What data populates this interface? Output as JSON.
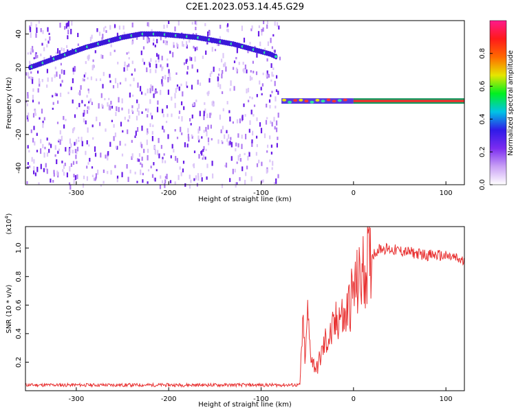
{
  "figure": {
    "title": "C2E1.2023.053.14.45.G29"
  },
  "colors": {
    "ridge_low": "#3b18d8",
    "ridge_high": "#2ee8a0",
    "noise": "#8a3cf0",
    "snr_line": "#e83030",
    "plot_bg": "#ffffff"
  },
  "chart_data": [
    {
      "type": "heatmap",
      "name": "spectrogram",
      "xlabel": "Height of straight line (km)",
      "ylabel": "Frequency (Hz)",
      "xlim": [
        -355,
        120
      ],
      "ylim": [
        -50,
        48
      ],
      "x_ticks": [
        -300,
        -200,
        -100,
        0,
        100
      ],
      "y_ticks": [
        40,
        20,
        0,
        -20,
        -40
      ],
      "ridge": {
        "x": [
          -350,
          -330,
          -310,
          -290,
          -270,
          -250,
          -230,
          -210,
          -190,
          -170,
          -150,
          -130,
          -110,
          -90,
          -82,
          -75,
          -60,
          -45,
          -30,
          -15,
          0,
          50,
          120
        ],
        "y": [
          20,
          24,
          28,
          32,
          35,
          38,
          40,
          40,
          39,
          38,
          36,
          34,
          31,
          28,
          26,
          0,
          1,
          0,
          1,
          0,
          0,
          0,
          0
        ]
      },
      "noise_region": [
        -355,
        -80
      ],
      "colorbar": {
        "label": "Normalized spectral amplitude",
        "range": [
          0,
          1
        ],
        "ticks": [
          "0.0",
          "0.2",
          "0.4",
          "0.6",
          "0.8"
        ],
        "colors": [
          "#ffffff",
          "#c9a0f5",
          "#7b2cf0",
          "#2f1ae8",
          "#00c4e6",
          "#00f020",
          "#e6e600",
          "#ff6a00",
          "#ff1a1a",
          "#ff1a8c"
        ]
      }
    },
    {
      "type": "line",
      "name": "snr",
      "xlabel": "Height of straight line (km)",
      "ylabel": "SNR (10 * v/v)",
      "y_multiplier": "(x10",
      "y_multiplier_exp": "4",
      "y_multiplier_close": ")",
      "xlim": [
        -355,
        120
      ],
      "ylim": [
        0,
        1.15
      ],
      "x_ticks": [
        -300,
        -200,
        -100,
        0,
        100
      ],
      "y_ticks": [
        "0.2",
        "0.4",
        "0.6",
        "0.8",
        "1.0"
      ],
      "x": [
        -355,
        -300,
        -200,
        -100,
        -58,
        -55,
        -52,
        -50,
        -47,
        -44,
        -40,
        -35,
        -30,
        -25,
        -20,
        -15,
        -10,
        -5,
        0,
        5,
        10,
        15,
        20,
        25,
        30,
        40,
        50,
        60,
        70,
        80,
        90,
        100,
        110,
        120
      ],
      "y": [
        0.04,
        0.04,
        0.04,
        0.04,
        0.04,
        0.45,
        0.2,
        0.55,
        0.3,
        0.2,
        0.15,
        0.25,
        0.35,
        0.38,
        0.45,
        0.55,
        0.48,
        0.6,
        0.7,
        0.75,
        0.82,
        0.9,
        0.95,
        0.98,
        1.0,
        0.99,
        0.98,
        0.97,
        0.96,
        0.95,
        0.95,
        0.94,
        0.93,
        0.9
      ]
    }
  ]
}
